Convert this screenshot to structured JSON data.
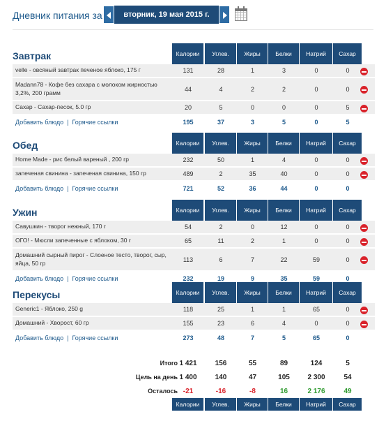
{
  "header": {
    "title": "Дневник питания за:",
    "date": "вторник, 19 мая 2015 г."
  },
  "columns": [
    "Калории",
    "Углев.",
    "Жиры",
    "Белки",
    "Натрий",
    "Сахар"
  ],
  "links": {
    "add": "Добавить блюдо",
    "separator": "|",
    "hot": "Горячие ссылки"
  },
  "meals": [
    {
      "title": "Завтрак",
      "items": [
        {
          "name": "velle - овсяный завтрак печеное яблоко, 175 г",
          "values": [
            "131",
            "28",
            "1",
            "3",
            "0",
            "0"
          ]
        },
        {
          "name": "Madann78 - Кофе без сахара с молоком жирностью 3,2%, 200 грамм",
          "values": [
            "44",
            "4",
            "2",
            "2",
            "0",
            "0"
          ]
        },
        {
          "name": "Сахар - Сахар-песок, 5.0 гр",
          "values": [
            "20",
            "5",
            "0",
            "0",
            "0",
            "5"
          ]
        }
      ],
      "totals": [
        "195",
        "37",
        "3",
        "5",
        "0",
        "5"
      ]
    },
    {
      "title": "Обед",
      "items": [
        {
          "name": "Home Made - рис белый вареный , 200 гр",
          "values": [
            "232",
            "50",
            "1",
            "4",
            "0",
            "0"
          ]
        },
        {
          "name": "запеченая свинина - запеченая свинина, 150 гр",
          "values": [
            "489",
            "2",
            "35",
            "40",
            "0",
            "0"
          ]
        }
      ],
      "totals": [
        "721",
        "52",
        "36",
        "44",
        "0",
        "0"
      ]
    },
    {
      "title": "Ужин",
      "items": [
        {
          "name": "Савушкин - творог нежный, 170 г",
          "values": [
            "54",
            "2",
            "0",
            "12",
            "0",
            "0"
          ]
        },
        {
          "name": "ОГО! - Мюсли запеченные с яблоком, 30 г",
          "values": [
            "65",
            "11",
            "2",
            "1",
            "0",
            "0"
          ]
        },
        {
          "name": "Домашний сырный пирог - Слоеное тесто, творог, сыр, яйца, 50 гр",
          "values": [
            "113",
            "6",
            "7",
            "22",
            "59",
            "0"
          ]
        }
      ],
      "totals": [
        "232",
        "19",
        "9",
        "35",
        "59",
        "0"
      ]
    },
    {
      "title": "Перекусы",
      "items": [
        {
          "name": "Generic1 - Яблоко, 250 g",
          "values": [
            "118",
            "25",
            "1",
            "1",
            "65",
            "0"
          ]
        },
        {
          "name": "Домашний - Хворост, 60 гр",
          "values": [
            "155",
            "23",
            "6",
            "4",
            "0",
            "0"
          ]
        }
      ],
      "totals": [
        "273",
        "48",
        "7",
        "5",
        "65",
        "0"
      ]
    }
  ],
  "summary": {
    "total_label": "Итого",
    "total": [
      "1 421",
      "156",
      "55",
      "89",
      "124",
      "5"
    ],
    "goal_label": "Цель на день",
    "goal": [
      "1 400",
      "140",
      "47",
      "105",
      "2 300",
      "54"
    ],
    "left_label": "Осталось",
    "left": [
      "-21",
      "-16",
      "-8",
      "16",
      "2 176",
      "49"
    ],
    "colors": {
      "negative": "#d9222a",
      "positive": "#2e9a2e"
    }
  },
  "icons": {
    "prev": "chevron-left-icon",
    "next": "chevron-right-icon",
    "calendar": "calendar-icon",
    "delete": "delete-icon"
  },
  "colors": {
    "brand": "#1e4b78",
    "row_bg": "#eeeeee"
  }
}
